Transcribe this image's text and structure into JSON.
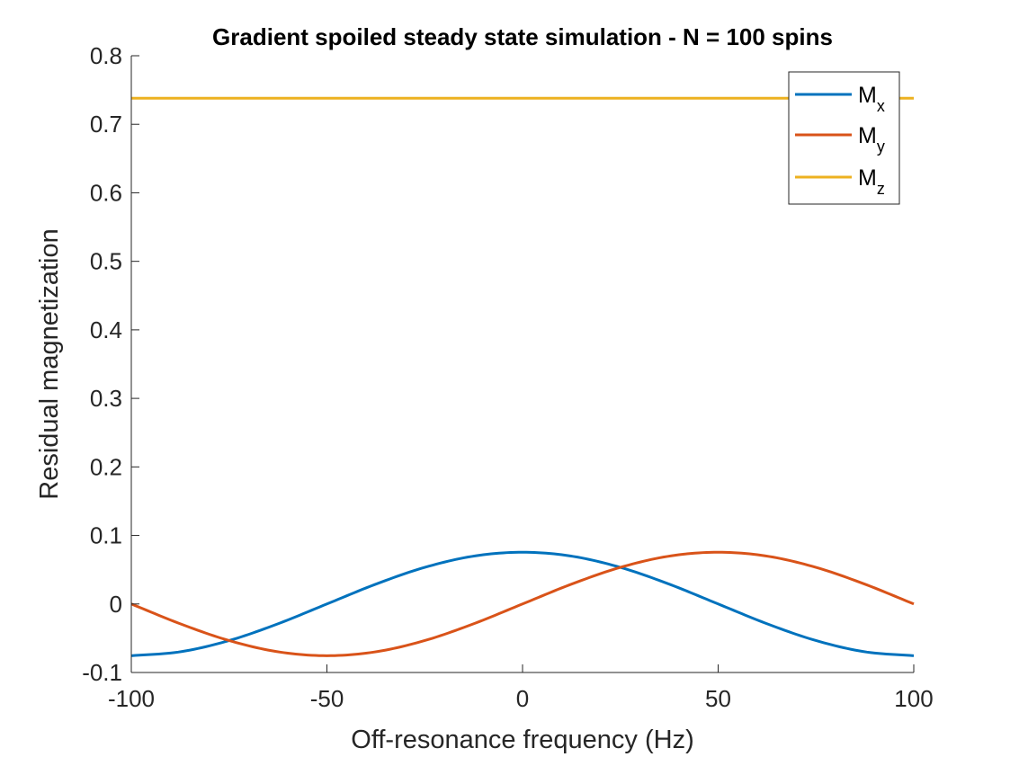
{
  "chart_data": {
    "type": "line",
    "title": "Gradient spoiled steady state simulation - N = 100 spins",
    "xlabel": "Off-resonance frequency (Hz)",
    "ylabel": "Residual magnetization",
    "xlim": [
      -100,
      100
    ],
    "ylim": [
      -0.1,
      0.8
    ],
    "xticks": [
      -100,
      -50,
      0,
      50,
      100
    ],
    "xtick_labels": [
      "-100",
      "-50",
      "0",
      "50",
      "100"
    ],
    "yticks": [
      -0.1,
      0,
      0.1,
      0.2,
      0.3,
      0.4,
      0.5,
      0.6,
      0.7,
      0.8
    ],
    "ytick_labels": [
      "-0.1",
      "0",
      "0.1",
      "0.2",
      "0.3",
      "0.4",
      "0.5",
      "0.6",
      "0.7",
      "0.8"
    ],
    "grid": false,
    "legend_position": "top-right",
    "x": [
      -100,
      -87.5,
      -75,
      -62.5,
      -50,
      -37.5,
      -25,
      -12.5,
      0,
      12.5,
      25,
      37.5,
      50,
      62.5,
      75,
      87.5,
      100
    ],
    "series": [
      {
        "name": "M",
        "subscript": "x",
        "color": "#0072BD",
        "values": [
          -0.0755,
          -0.0698,
          -0.0534,
          -0.0289,
          0.0,
          0.0289,
          0.0534,
          0.0698,
          0.0755,
          0.0698,
          0.0534,
          0.0289,
          0.0,
          -0.0289,
          -0.0534,
          -0.0698,
          -0.0755
        ]
      },
      {
        "name": "M",
        "subscript": "y",
        "color": "#D95319",
        "values": [
          0.0,
          -0.0289,
          -0.0534,
          -0.0698,
          -0.0755,
          -0.0698,
          -0.0534,
          -0.0289,
          0.0,
          0.0289,
          0.0534,
          0.0698,
          0.0755,
          0.0698,
          0.0534,
          0.0289,
          0.0
        ]
      },
      {
        "name": "M",
        "subscript": "z",
        "color": "#EDB120",
        "values": [
          0.738,
          0.738,
          0.738,
          0.738,
          0.738,
          0.738,
          0.738,
          0.738,
          0.738,
          0.738,
          0.738,
          0.738,
          0.738,
          0.738,
          0.738,
          0.738,
          0.738
        ]
      }
    ]
  }
}
